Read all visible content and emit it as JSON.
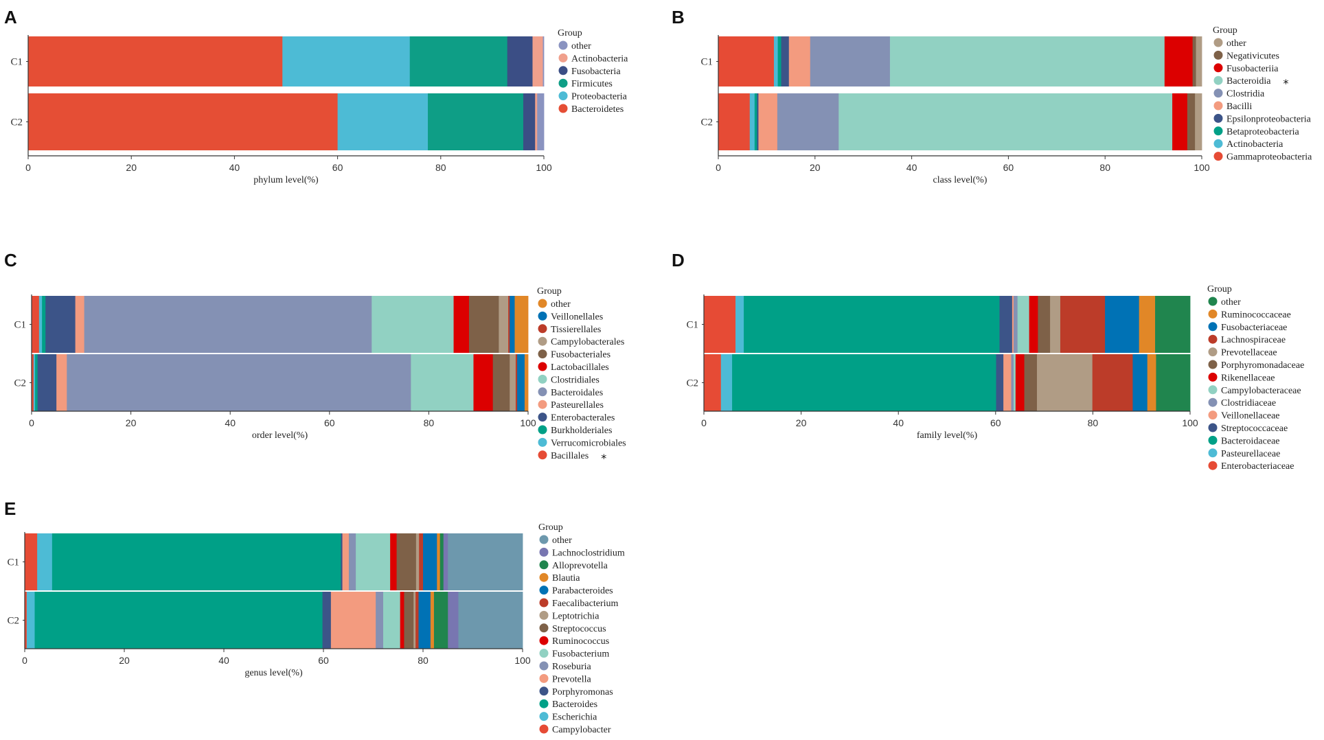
{
  "chart_data": [
    {
      "panel": "A",
      "type": "bar",
      "orientation": "horizontal-stacked",
      "xlabel": "phylum level(%)",
      "xlim": [
        0,
        100
      ],
      "xticks": [
        0,
        20,
        40,
        60,
        80,
        100
      ],
      "legend_title": "Group",
      "legend": [
        {
          "name": "other",
          "color": "#8A93C0"
        },
        {
          "name": "Actinobacteria",
          "color": "#F0A08C"
        },
        {
          "name": "Fusobacteria",
          "color": "#3B4E85"
        },
        {
          "name": "Firmicutes",
          "color": "#0E9E86"
        },
        {
          "name": "Proteobacteria",
          "color": "#4DBBD5"
        },
        {
          "name": "Bacteroidetes",
          "color": "#E54E35"
        }
      ],
      "categories": [
        "C1",
        "C2"
      ],
      "series": [
        {
          "name": "Bacteroidetes",
          "color": "#E54E35",
          "values": [
            49.3,
            60.0
          ]
        },
        {
          "name": "Proteobacteria",
          "color": "#4DBBD5",
          "values": [
            24.7,
            17.5
          ]
        },
        {
          "name": "Firmicutes",
          "color": "#0E9E86",
          "values": [
            18.9,
            18.5
          ]
        },
        {
          "name": "Fusobacteria",
          "color": "#3B4E85",
          "values": [
            4.9,
            2.3
          ]
        },
        {
          "name": "Actinobacteria",
          "color": "#F0A08C",
          "values": [
            2.0,
            0.4
          ]
        },
        {
          "name": "other",
          "color": "#8A93C0",
          "values": [
            0.2,
            1.3
          ]
        }
      ]
    },
    {
      "panel": "B",
      "type": "bar",
      "orientation": "horizontal-stacked",
      "xlabel": "class level(%)",
      "xlim": [
        0,
        100
      ],
      "xticks": [
        0,
        20,
        40,
        60,
        80,
        100
      ],
      "legend_title": "Group",
      "legend": [
        {
          "name": "other",
          "color": "#B09C85"
        },
        {
          "name": "Negativicutes",
          "color": "#7E6148"
        },
        {
          "name": "Fusobacteriia",
          "color": "#DC0000"
        },
        {
          "name": "Bacteroidia",
          "color": "#91D1C2",
          "mark": "*"
        },
        {
          "name": "Clostridia",
          "color": "#8491B4"
        },
        {
          "name": "Bacilli",
          "color": "#F39B7F"
        },
        {
          "name": "Epsilonproteobacteria",
          "color": "#3C5488"
        },
        {
          "name": "Betaproteobacteria",
          "color": "#00A087"
        },
        {
          "name": "Actinobacteria",
          "color": "#4DBBD5"
        },
        {
          "name": "Gammaproteobacteria",
          "color": "#E64B35"
        }
      ],
      "categories": [
        "C1",
        "C2"
      ],
      "series": [
        {
          "name": "Gammaproteobacteria",
          "color": "#E64B35",
          "values": [
            11.5,
            6.5
          ]
        },
        {
          "name": "Actinobacteria",
          "color": "#4DBBD5",
          "values": [
            0.8,
            1.0
          ]
        },
        {
          "name": "Betaproteobacteria",
          "color": "#00A087",
          "values": [
            0.7,
            0.5
          ]
        },
        {
          "name": "Epsilonproteobacteria",
          "color": "#3C5488",
          "values": [
            1.6,
            0.3
          ]
        },
        {
          "name": "Bacilli",
          "color": "#F39B7F",
          "values": [
            4.4,
            3.9
          ]
        },
        {
          "name": "Clostridia",
          "color": "#8491B4",
          "values": [
            16.5,
            12.7
          ]
        },
        {
          "name": "Bacteroidia",
          "color": "#91D1C2",
          "values": [
            56.8,
            69.0
          ]
        },
        {
          "name": "Fusobacteriia",
          "color": "#DC0000",
          "values": [
            5.8,
            3.1
          ]
        },
        {
          "name": "Negativicutes",
          "color": "#7E6148",
          "values": [
            0.7,
            1.6
          ]
        },
        {
          "name": "other",
          "color": "#B09C85",
          "values": [
            1.2,
            1.4
          ]
        }
      ]
    },
    {
      "panel": "C",
      "type": "bar",
      "orientation": "horizontal-stacked",
      "xlabel": "order level(%)",
      "xlim": [
        0,
        100
      ],
      "xticks": [
        0,
        20,
        40,
        60,
        80,
        100
      ],
      "legend_title": "Group",
      "legend": [
        {
          "name": "other",
          "color": "#E18727"
        },
        {
          "name": "Veillonellales",
          "color": "#0072B5"
        },
        {
          "name": "Tissierellales",
          "color": "#BC3C29"
        },
        {
          "name": "Campylobacterales",
          "color": "#B09C85"
        },
        {
          "name": "Fusobacteriales",
          "color": "#7E6148"
        },
        {
          "name": "Lactobacillales",
          "color": "#DC0000"
        },
        {
          "name": "Clostridiales",
          "color": "#91D1C2"
        },
        {
          "name": "Bacteroidales",
          "color": "#8491B4"
        },
        {
          "name": "Pasteurellales",
          "color": "#F39B7F"
        },
        {
          "name": "Enterobacterales",
          "color": "#3C5488"
        },
        {
          "name": "Burkholderiales",
          "color": "#00A087"
        },
        {
          "name": "Verrucomicrobiales",
          "color": "#4DBBD5"
        },
        {
          "name": "Bacillales",
          "color": "#E64B35",
          "mark": "*"
        }
      ],
      "categories": [
        "C1",
        "C2"
      ],
      "series": [
        {
          "name": "Bacillales",
          "color": "#E64B35",
          "values": [
            1.5,
            0.4
          ]
        },
        {
          "name": "Verrucomicrobiales",
          "color": "#4DBBD5",
          "values": [
            0.6,
            0.3
          ]
        },
        {
          "name": "Burkholderiales",
          "color": "#00A087",
          "values": [
            0.7,
            0.5
          ]
        },
        {
          "name": "Enterobacterales",
          "color": "#3C5488",
          "values": [
            6.0,
            3.8
          ]
        },
        {
          "name": "Pasteurellales",
          "color": "#F39B7F",
          "values": [
            1.8,
            2.1
          ]
        },
        {
          "name": "Bacteroidales",
          "color": "#8491B4",
          "values": [
            57.9,
            69.3
          ]
        },
        {
          "name": "Clostridiales",
          "color": "#91D1C2",
          "values": [
            16.5,
            12.6
          ]
        },
        {
          "name": "Lactobacillales",
          "color": "#DC0000",
          "values": [
            3.1,
            3.9
          ]
        },
        {
          "name": "Fusobacteriales",
          "color": "#7E6148",
          "values": [
            6.0,
            3.4
          ]
        },
        {
          "name": "Campylobacterales",
          "color": "#B09C85",
          "values": [
            1.9,
            1.2
          ]
        },
        {
          "name": "Tissierellales",
          "color": "#BC3C29",
          "values": [
            0.3,
            0.3
          ]
        },
        {
          "name": "Veillonellales",
          "color": "#0072B5",
          "values": [
            1.0,
            1.5
          ]
        },
        {
          "name": "other",
          "color": "#E18727",
          "values": [
            2.7,
            0.7
          ]
        }
      ]
    },
    {
      "panel": "D",
      "type": "bar",
      "orientation": "horizontal-stacked",
      "xlabel": "family level(%)",
      "xlim": [
        0,
        100
      ],
      "xticks": [
        0,
        20,
        40,
        60,
        80,
        100
      ],
      "legend_title": "Group",
      "legend": [
        {
          "name": "other",
          "color": "#20854E"
        },
        {
          "name": "Ruminococcaceae",
          "color": "#E18727"
        },
        {
          "name": "Fusobacteriaceae",
          "color": "#0072B5"
        },
        {
          "name": "Lachnospiraceae",
          "color": "#BC3C29"
        },
        {
          "name": "Prevotellaceae",
          "color": "#B09C85"
        },
        {
          "name": "Porphyromonadaceae",
          "color": "#7E6148"
        },
        {
          "name": "Rikenellaceae",
          "color": "#DC0000"
        },
        {
          "name": "Campylobacteraceae",
          "color": "#91D1C2"
        },
        {
          "name": "Clostridiaceae",
          "color": "#8491B4"
        },
        {
          "name": "Veillonellaceae",
          "color": "#F39B7F"
        },
        {
          "name": "Streptococcaceae",
          "color": "#3C5488"
        },
        {
          "name": "Bacteroidaceae",
          "color": "#00A087"
        },
        {
          "name": "Pasteurellaceae",
          "color": "#4DBBD5"
        },
        {
          "name": "Enterobacteriaceae",
          "color": "#E64B35"
        }
      ],
      "categories": [
        "C1",
        "C2"
      ],
      "series": [
        {
          "name": "Enterobacteriaceae",
          "color": "#E64B35",
          "values": [
            6.5,
            3.5
          ]
        },
        {
          "name": "Pasteurellaceae",
          "color": "#4DBBD5",
          "values": [
            1.7,
            2.3
          ]
        },
        {
          "name": "Bacteroidaceae",
          "color": "#00A087",
          "values": [
            52.6,
            54.3
          ]
        },
        {
          "name": "Streptococcaceae",
          "color": "#3C5488",
          "values": [
            2.6,
            1.5
          ]
        },
        {
          "name": "Veillonellaceae",
          "color": "#F39B7F",
          "values": [
            0.3,
            1.6
          ]
        },
        {
          "name": "Clostridiaceae",
          "color": "#8491B4",
          "values": [
            0.8,
            0.5
          ]
        },
        {
          "name": "Campylobacteraceae",
          "color": "#91D1C2",
          "values": [
            2.4,
            0.4
          ]
        },
        {
          "name": "Rikenellaceae",
          "color": "#DC0000",
          "values": [
            1.8,
            1.8
          ]
        },
        {
          "name": "Porphyromonadaceae",
          "color": "#7E6148",
          "values": [
            2.5,
            2.6
          ]
        },
        {
          "name": "Prevotellaceae",
          "color": "#B09C85",
          "values": [
            2.1,
            11.4
          ]
        },
        {
          "name": "Lachnospiraceae",
          "color": "#BC3C29",
          "values": [
            9.2,
            8.3
          ]
        },
        {
          "name": "Fusobacteriaceae",
          "color": "#0072B5",
          "values": [
            7.0,
            3.0
          ]
        },
        {
          "name": "Ruminococcaceae",
          "color": "#E18727",
          "values": [
            3.3,
            1.8
          ]
        },
        {
          "name": "other",
          "color": "#20854E",
          "values": [
            7.2,
            7.0
          ]
        }
      ]
    },
    {
      "panel": "E",
      "type": "bar",
      "orientation": "horizontal-stacked",
      "xlabel": "genus level(%)",
      "xlim": [
        0,
        100
      ],
      "xticks": [
        0,
        20,
        40,
        60,
        80,
        100
      ],
      "legend_title": "Group",
      "legend": [
        {
          "name": "other",
          "color": "#6D98AD"
        },
        {
          "name": "Lachnoclostridium",
          "color": "#7876B1"
        },
        {
          "name": "Alloprevotella",
          "color": "#20854E"
        },
        {
          "name": "Blautia",
          "color": "#E18727"
        },
        {
          "name": "Parabacteroides",
          "color": "#0072B5"
        },
        {
          "name": "Faecalibacterium",
          "color": "#BC3C29"
        },
        {
          "name": "Leptotrichia",
          "color": "#B09C85"
        },
        {
          "name": "Streptococcus",
          "color": "#7E6148"
        },
        {
          "name": "Ruminococcus",
          "color": "#DC0000"
        },
        {
          "name": "Fusobacterium",
          "color": "#91D1C2"
        },
        {
          "name": "Roseburia",
          "color": "#8491B4"
        },
        {
          "name": "Prevotella",
          "color": "#F39B7F"
        },
        {
          "name": "Porphyromonas",
          "color": "#3C5488"
        },
        {
          "name": "Bacteroides",
          "color": "#00A087"
        },
        {
          "name": "Escherichia",
          "color": "#4DBBD5"
        },
        {
          "name": "Campylobacter",
          "color": "#E64B35"
        }
      ],
      "categories": [
        "C1",
        "C2"
      ],
      "series": [
        {
          "name": "Campylobacter",
          "color": "#E64B35",
          "values": [
            2.5,
            0.4
          ]
        },
        {
          "name": "Escherichia",
          "color": "#4DBBD5",
          "values": [
            3.0,
            1.6
          ]
        },
        {
          "name": "Bacteroides",
          "color": "#00A087",
          "values": [
            58.0,
            57.8
          ]
        },
        {
          "name": "Porphyromonas",
          "color": "#3C5488",
          "values": [
            0.3,
            1.7
          ]
        },
        {
          "name": "Prevotella",
          "color": "#F39B7F",
          "values": [
            1.3,
            9.0
          ]
        },
        {
          "name": "Roseburia",
          "color": "#8491B4",
          "values": [
            1.4,
            1.5
          ]
        },
        {
          "name": "Fusobacterium",
          "color": "#91D1C2",
          "values": [
            6.9,
            3.4
          ]
        },
        {
          "name": "Ruminococcus",
          "color": "#DC0000",
          "values": [
            1.3,
            0.8
          ]
        },
        {
          "name": "Streptococcus",
          "color": "#7E6148",
          "values": [
            3.9,
            1.9
          ]
        },
        {
          "name": "Leptotrichia",
          "color": "#B09C85",
          "values": [
            0.6,
            0.4
          ]
        },
        {
          "name": "Faecalibacterium",
          "color": "#BC3C29",
          "values": [
            0.8,
            0.6
          ]
        },
        {
          "name": "Parabacteroides",
          "color": "#0072B5",
          "values": [
            2.8,
            2.4
          ]
        },
        {
          "name": "Blautia",
          "color": "#E18727",
          "values": [
            0.6,
            0.7
          ]
        },
        {
          "name": "Alloprevotella",
          "color": "#20854E",
          "values": [
            0.7,
            2.8
          ]
        },
        {
          "name": "Lachnoclostridium",
          "color": "#7876B1",
          "values": [
            0.9,
            2.1
          ]
        },
        {
          "name": "other",
          "color": "#6D98AD",
          "values": [
            15.0,
            12.9
          ]
        }
      ]
    }
  ]
}
